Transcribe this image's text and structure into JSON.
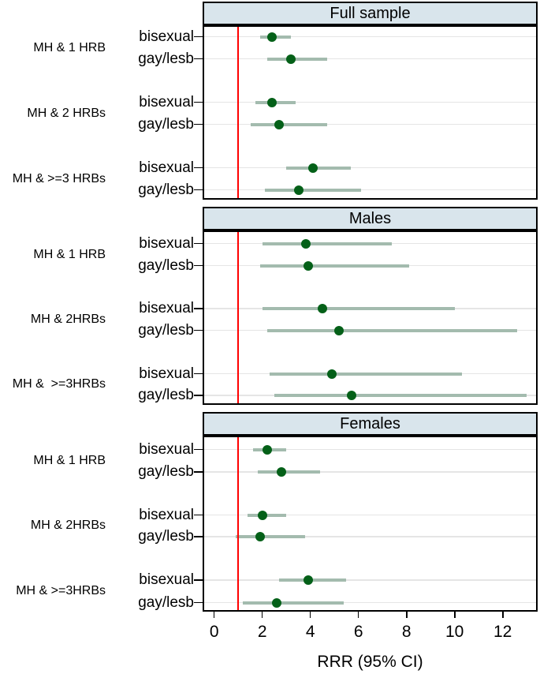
{
  "chart_data": {
    "type": "forest",
    "xlabel": "RRR (95% CI)",
    "x_ticks": [
      0,
      2,
      4,
      6,
      8,
      10,
      12
    ],
    "x_range": [
      -0.45,
      13.45
    ],
    "reference_line_x": 1,
    "grid": true,
    "panels": [
      {
        "title": "Full sample",
        "groups": [
          {
            "label": "MH & 1 HRB",
            "rows": [
              {
                "label": "bisexual",
                "rrr": 2.4,
                "ci_low": 1.9,
                "ci_high": 3.2
              },
              {
                "label": "gay/lesb",
                "rrr": 3.2,
                "ci_low": 2.2,
                "ci_high": 4.7
              }
            ]
          },
          {
            "label": "MH & 2 HRBs",
            "rows": [
              {
                "label": "bisexual",
                "rrr": 2.4,
                "ci_low": 1.7,
                "ci_high": 3.4
              },
              {
                "label": "gay/lesb",
                "rrr": 2.7,
                "ci_low": 1.5,
                "ci_high": 4.7
              }
            ]
          },
          {
            "label": "MH & >=3 HRBs",
            "rows": [
              {
                "label": "bisexual",
                "rrr": 4.1,
                "ci_low": 3.0,
                "ci_high": 5.7
              },
              {
                "label": "gay/lesb",
                "rrr": 3.5,
                "ci_low": 2.1,
                "ci_high": 6.1
              }
            ]
          }
        ]
      },
      {
        "title": "Males",
        "groups": [
          {
            "label": "MH & 1 HRB",
            "rows": [
              {
                "label": "bisexual",
                "rrr": 3.8,
                "ci_low": 2.0,
                "ci_high": 7.4
              },
              {
                "label": "gay/lesb",
                "rrr": 3.9,
                "ci_low": 1.9,
                "ci_high": 8.1
              }
            ]
          },
          {
            "label": "MH & 2HRBs",
            "rows": [
              {
                "label": "bisexual",
                "rrr": 4.5,
                "ci_low": 2.0,
                "ci_high": 10.0
              },
              {
                "label": "gay/lesb",
                "rrr": 5.2,
                "ci_low": 2.2,
                "ci_high": 12.6
              }
            ]
          },
          {
            "label": "MH &  >=3HRBs",
            "rows": [
              {
                "label": "bisexual",
                "rrr": 4.9,
                "ci_low": 2.3,
                "ci_high": 10.3
              },
              {
                "label": "gay/lesb",
                "rrr": 5.7,
                "ci_low": 2.5,
                "ci_high": 13.0
              }
            ]
          }
        ]
      },
      {
        "title": "Females",
        "groups": [
          {
            "label": "MH & 1 HRB",
            "rows": [
              {
                "label": "bisexual",
                "rrr": 2.2,
                "ci_low": 1.6,
                "ci_high": 3.0
              },
              {
                "label": "gay/lesb",
                "rrr": 2.8,
                "ci_low": 1.8,
                "ci_high": 4.4
              }
            ]
          },
          {
            "label": "MH & 2HRBs",
            "rows": [
              {
                "label": "bisexual",
                "rrr": 2.0,
                "ci_low": 1.4,
                "ci_high": 3.0
              },
              {
                "label": "gay/lesb",
                "rrr": 1.9,
                "ci_low": 0.9,
                "ci_high": 3.8
              }
            ]
          },
          {
            "label": "MH & >=3HRBs",
            "rows": [
              {
                "label": "bisexual",
                "rrr": 3.9,
                "ci_low": 2.7,
                "ci_high": 5.5
              },
              {
                "label": "gay/lesb",
                "rrr": 2.6,
                "ci_low": 1.2,
                "ci_high": 5.4
              }
            ]
          }
        ]
      }
    ]
  },
  "colors": {
    "marker": "#046018",
    "ci": "#a3bbae",
    "reference": "#ff0000",
    "header_fill": "#d9e5ec",
    "grid": "#e5e5e5",
    "border": "#000000"
  }
}
